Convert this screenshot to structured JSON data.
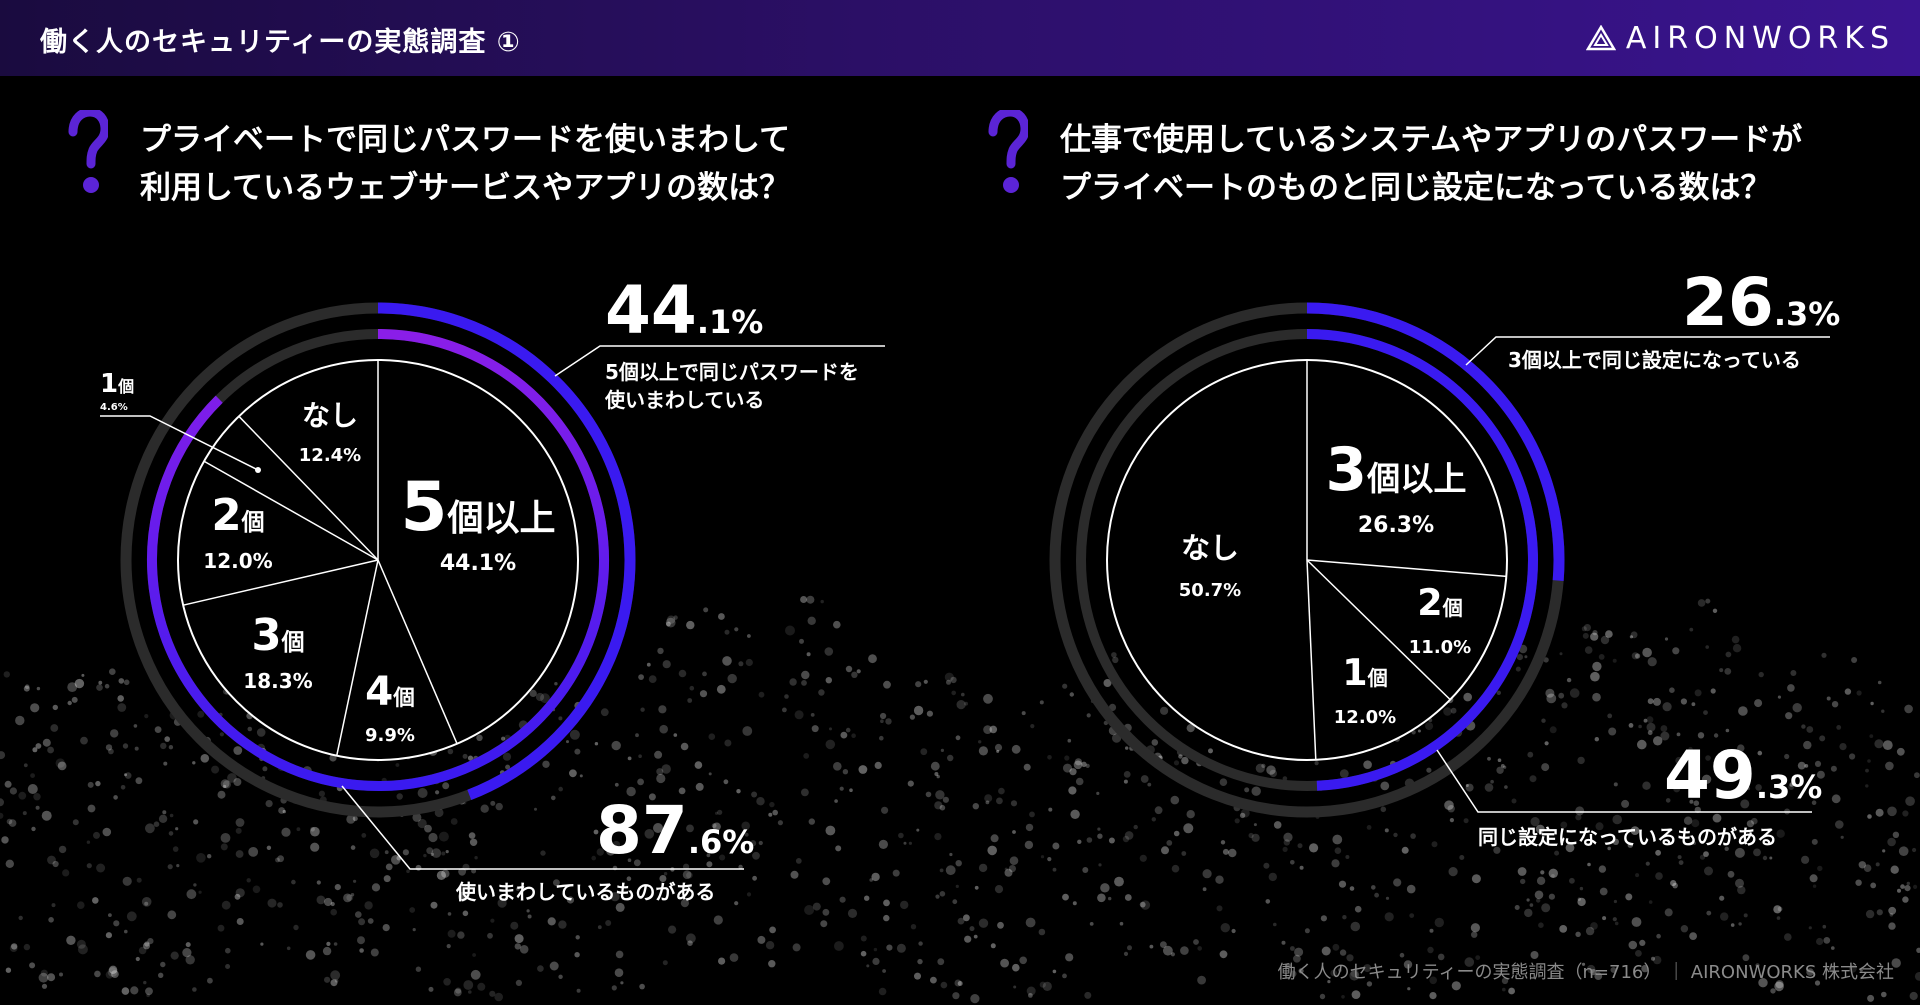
{
  "header": {
    "title": "働く人のセキュリティーの実態調査 ①",
    "brand": "AIRONWORKS"
  },
  "footer": {
    "text": "働く人のセキュリティーの実態調査（n=716） ｜ AIRONWORKS 株式会社"
  },
  "colors": {
    "accent_blue": "#3a1af0",
    "accent_purple": "#8a1ee8",
    "ring_gray": "#2b2b2b",
    "question_mark": "#5b24d6"
  },
  "charts": [
    {
      "question_lines": [
        "プライベートで同じパスワードを使いまわして",
        "利用しているウェブサービスやアプリの数は？"
      ],
      "callouts": [
        {
          "big": "44",
          "dec": ".1%",
          "label_lines": [
            "5個以上で同じパスワードを",
            "使いまわしている"
          ]
        },
        {
          "big": "87",
          "dec": ".6%",
          "label_lines": [
            "使いまわしているものがある"
          ]
        }
      ]
    },
    {
      "question_lines": [
        "仕事で使用しているシステムやアプリのパスワードが",
        "プライベートのものと同じ設定になっている数は？"
      ],
      "callouts": [
        {
          "big": "26",
          "dec": ".3%",
          "label_lines": [
            "3個以上で同じ設定になっている"
          ]
        },
        {
          "big": "49",
          "dec": ".3%",
          "label_lines": [
            "同じ設定になっているものがある"
          ]
        }
      ]
    }
  ],
  "chart_data": [
    {
      "type": "pie",
      "categories": [
        "5個以上",
        "4個",
        "3個",
        "2個",
        "1個",
        "なし"
      ],
      "values": [
        44.1,
        9.9,
        18.3,
        12.0,
        4.6,
        12.4
      ],
      "value_labels": [
        "44.1%",
        "9.9%",
        "18.3%",
        "12.0%",
        "4.6%",
        "12.4%"
      ],
      "highlight_rings": [
        {
          "value": 44.1,
          "label": "44.1%"
        },
        {
          "value": 87.6,
          "label": "87.6%"
        }
      ]
    },
    {
      "type": "pie",
      "categories": [
        "3個以上",
        "2個",
        "1個",
        "なし"
      ],
      "values": [
        26.3,
        11.0,
        12.0,
        50.7
      ],
      "value_labels": [
        "26.3%",
        "11.0%",
        "12.0%",
        "50.7%"
      ],
      "highlight_rings": [
        {
          "value": 26.3,
          "label": "26.3%"
        },
        {
          "value": 49.3,
          "label": "49.3%"
        }
      ]
    }
  ]
}
